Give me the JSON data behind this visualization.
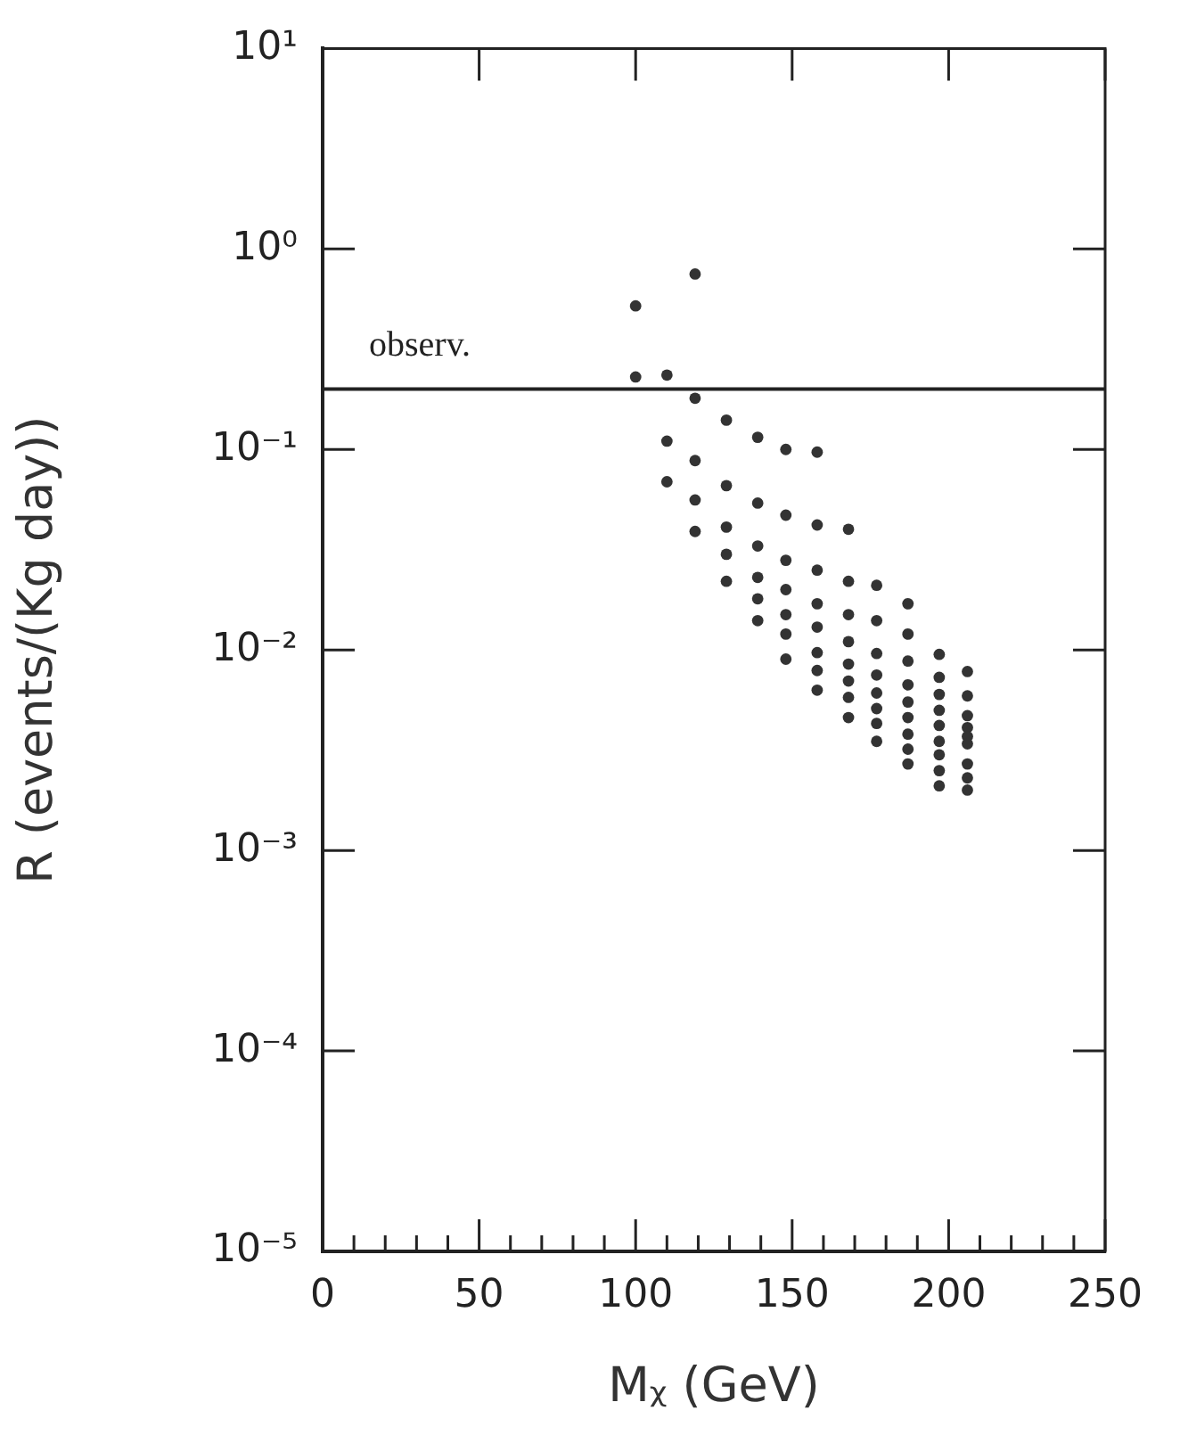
{
  "chart_data": {
    "type": "scatter",
    "xlabel": "Mᵪ (GeV)",
    "ylabel": "R (events/(Kg day))",
    "log": "y",
    "grid": false,
    "legend": false,
    "marker": "circle",
    "xlim": [
      0,
      250
    ],
    "ylim": [
      1e-05,
      10
    ],
    "xticks": [
      0,
      {
        "value": 10,
        "label": null
      },
      {
        "value": 20,
        "label": null
      },
      {
        "value": 30,
        "label": null
      },
      {
        "value": 40,
        "label": null
      },
      50,
      {
        "value": 60,
        "label": null
      },
      {
        "value": 70,
        "label": null
      },
      {
        "value": 80,
        "label": null
      },
      {
        "value": 90,
        "label": null
      },
      100,
      {
        "value": 110,
        "label": null
      },
      {
        "value": 120,
        "label": null
      },
      {
        "value": 130,
        "label": null
      },
      {
        "value": 140,
        "label": null
      },
      150,
      {
        "value": 160,
        "label": null
      },
      {
        "value": 170,
        "label": null
      },
      {
        "value": 180,
        "label": null
      },
      {
        "value": 190,
        "label": null
      },
      200,
      {
        "value": 210,
        "label": null
      },
      {
        "value": 220,
        "label": null
      },
      {
        "value": 230,
        "label": null
      },
      {
        "value": 240,
        "label": null
      },
      250
    ],
    "yticks": [
      {
        "value": 1e-05,
        "label": "10⁻⁵"
      },
      {
        "value": 0.0001,
        "label": "10⁻⁴"
      },
      {
        "value": 0.001,
        "label": "10⁻³"
      },
      {
        "value": 0.01,
        "label": "10⁻²"
      },
      {
        "value": 0.1,
        "label": "10⁻¹"
      },
      {
        "value": 1,
        "label": "10⁰"
      },
      {
        "value": 10,
        "label": "10¹"
      }
    ],
    "ref_lines": [
      {
        "axis": "y",
        "value": 0.2,
        "label": "observ.",
        "color": "#222222"
      }
    ],
    "series": [
      {
        "color": "#333333",
        "x": [
          100,
          100,
          110,
          110,
          110,
          119,
          119,
          119,
          119,
          119,
          129,
          129,
          129,
          129,
          129,
          139,
          139,
          139,
          139,
          139,
          139,
          148,
          148,
          148,
          148,
          148,
          148,
          148,
          158,
          158,
          158,
          158,
          158,
          158,
          158,
          158,
          168,
          168,
          168,
          168,
          168,
          168,
          168,
          168,
          177,
          177,
          177,
          177,
          177,
          177,
          177,
          177,
          187,
          187,
          187,
          187,
          187,
          187,
          187,
          187,
          187,
          197,
          197,
          197,
          197,
          197,
          197,
          197,
          197,
          197,
          206,
          206,
          206,
          206,
          206,
          206,
          206,
          206,
          206
        ],
        "values": [
          0.52,
          0.23,
          0.235,
          0.11,
          0.069,
          0.75,
          0.18,
          0.088,
          0.056,
          0.039,
          0.14,
          0.066,
          0.041,
          0.03,
          0.022,
          0.115,
          0.054,
          0.033,
          0.023,
          0.018,
          0.014,
          0.1,
          0.047,
          0.028,
          0.02,
          0.015,
          0.012,
          0.009,
          0.097,
          0.042,
          0.025,
          0.017,
          0.013,
          0.0097,
          0.0079,
          0.0063,
          0.04,
          0.022,
          0.015,
          0.011,
          0.0085,
          0.007,
          0.0058,
          0.0046,
          0.021,
          0.014,
          0.0096,
          0.0075,
          0.0061,
          0.0051,
          0.0043,
          0.0035,
          0.017,
          0.012,
          0.0088,
          0.0067,
          0.0055,
          0.0046,
          0.0038,
          0.0032,
          0.0027,
          0.0095,
          0.0073,
          0.006,
          0.005,
          0.0042,
          0.0035,
          0.003,
          0.0025,
          0.0021,
          0.0078,
          0.0059,
          0.0047,
          0.0041,
          0.0037,
          0.0034,
          0.0027,
          0.0023,
          0.002
        ]
      }
    ]
  }
}
